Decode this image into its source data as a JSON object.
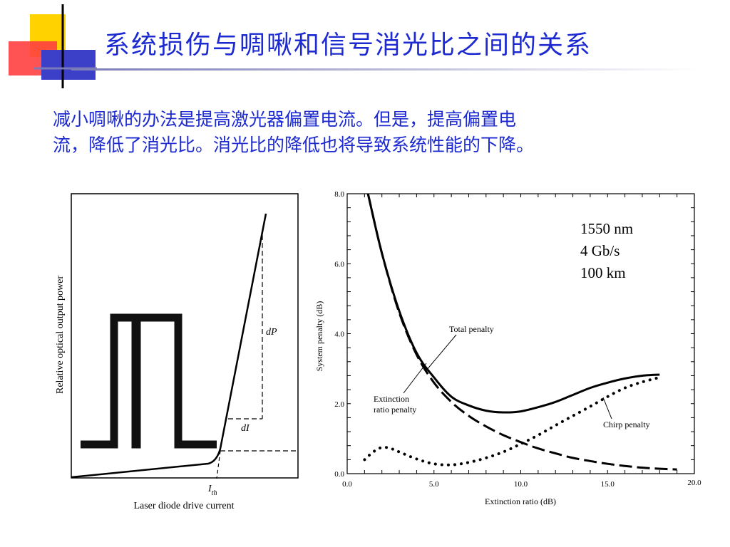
{
  "slide": {
    "title": "系统损伤与啁啾和信号消光比之间的关系",
    "body_lines": [
      "减小啁啾的办法是提高激光器偏置电流。但是，提高偏置电",
      "流，降低了消光比。消光比的降低也将导致系统性能的下降。"
    ]
  },
  "chart_data": [
    {
      "type": "line",
      "title": "",
      "xlabel": "Laser diode drive current",
      "ylabel": "Relative optical output power",
      "annotations": [
        "dP",
        "dI",
        "I_th"
      ]
    },
    {
      "type": "line",
      "xlabel": "Extinction ratio (dB)",
      "ylabel": "System penalty (dB)",
      "xlim": [
        0,
        20
      ],
      "ylim": [
        0,
        8
      ],
      "x_ticks": [
        "0.0",
        "5.0",
        "10.0",
        "15.0",
        "20.0"
      ],
      "y_ticks": [
        "0.0",
        "2.0",
        "4.0",
        "6.0",
        "8.0"
      ],
      "conditions": [
        "1550 nm",
        "4 Gb/s",
        "100 km"
      ],
      "series": [
        {
          "name": "Total penalty",
          "style": "solid",
          "x": [
            1.2,
            2,
            3,
            4,
            5,
            6,
            7,
            8,
            9,
            10,
            11,
            12,
            13,
            14,
            15,
            16,
            17,
            18
          ],
          "y": [
            8.0,
            6.3,
            4.65,
            3.45,
            2.75,
            2.2,
            1.95,
            1.8,
            1.75,
            1.78,
            1.9,
            2.05,
            2.25,
            2.45,
            2.6,
            2.72,
            2.8,
            2.83
          ]
        },
        {
          "name": "Extinction ratio penalty",
          "style": "dashed",
          "x": [
            1.2,
            2,
            3,
            4,
            5,
            6,
            7,
            8,
            9,
            10,
            11,
            12,
            13,
            14,
            15,
            16,
            17,
            18,
            19
          ],
          "y": [
            8.0,
            6.3,
            4.6,
            3.4,
            2.6,
            2.05,
            1.65,
            1.35,
            1.1,
            0.9,
            0.72,
            0.58,
            0.45,
            0.36,
            0.28,
            0.22,
            0.17,
            0.14,
            0.12
          ]
        },
        {
          "name": "Chirp penalty",
          "style": "dotted",
          "x": [
            1,
            1.5,
            2,
            2.5,
            3,
            4,
            5,
            6,
            7,
            8,
            9,
            10,
            11,
            12,
            13,
            14,
            15,
            16,
            17,
            18
          ],
          "y": [
            0.4,
            0.62,
            0.75,
            0.72,
            0.62,
            0.42,
            0.28,
            0.25,
            0.32,
            0.45,
            0.62,
            0.85,
            1.1,
            1.38,
            1.65,
            1.92,
            2.2,
            2.45,
            2.62,
            2.75
          ]
        }
      ]
    }
  ]
}
